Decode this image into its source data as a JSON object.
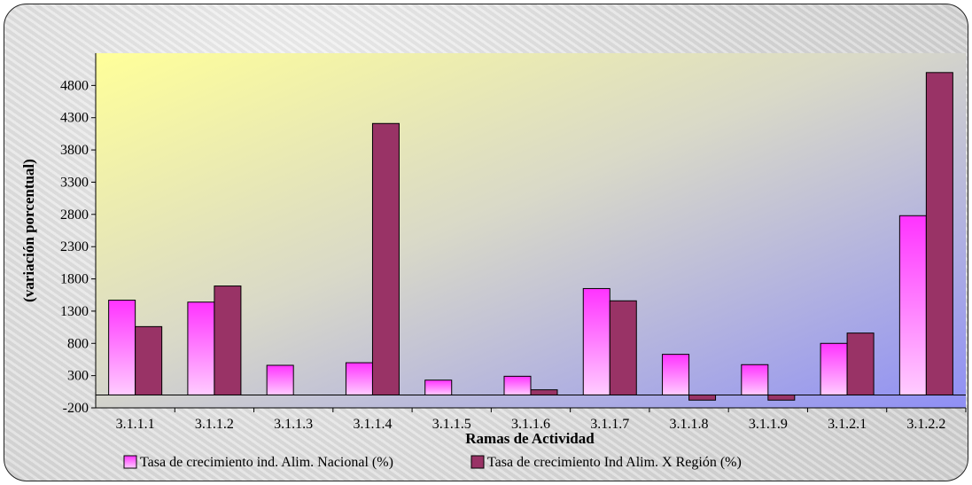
{
  "chart_data": {
    "type": "bar",
    "categories": [
      "3.1.1.1",
      "3.1.1.2",
      "3.1.1.3",
      "3.1.1.4",
      "3.1.1.5",
      "3.1.1.6",
      "3.1.1.7",
      "3.1.1.8",
      "3.1.1.9",
      "3.1.2.1",
      "3.1.2.2"
    ],
    "series": [
      {
        "name": "Tasa de crecimiento ind. Alim. Nacional (%)",
        "color": "#ff66ff",
        "values": [
          1470,
          1440,
          460,
          500,
          230,
          290,
          1650,
          630,
          470,
          800,
          2780
        ]
      },
      {
        "name": "Tasa de crecimiento Ind Alim. X Región (%)",
        "color": "#993366",
        "values": [
          1060,
          1690,
          0,
          4210,
          0,
          80,
          1460,
          -80,
          -80,
          960,
          5000
        ]
      }
    ],
    "xlabel": "Ramas de Actividad",
    "ylabel": "(variación porcentual)",
    "ylim": [
      -200,
      5300
    ],
    "yticks": [
      -200,
      300,
      800,
      1300,
      1800,
      2300,
      2800,
      3300,
      3800,
      4300,
      4800
    ],
    "legend_position": "bottom"
  }
}
